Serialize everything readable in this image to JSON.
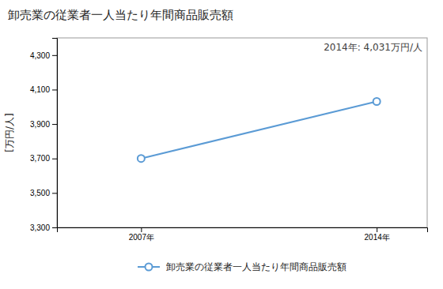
{
  "chart_data": {
    "type": "line",
    "title": "卸売業の従業者一人当たり年間商品販売額",
    "ylabel": "[万円/人]",
    "annotation": "2014年: 4,031万円/人",
    "x": [
      2007,
      2014
    ],
    "xlim": [
      2004.5,
      2015.5
    ],
    "xticks": [
      {
        "value": 2007,
        "label": "2007年"
      },
      {
        "value": 2014,
        "label": "2014年"
      }
    ],
    "series": [
      {
        "name": "卸売業の従業者一人当たり年間商品販売額",
        "color": "#5b9bd5",
        "marker": "circle",
        "values": [
          3700,
          4031
        ]
      }
    ],
    "ylim": [
      3300,
      4400
    ],
    "yticks": [
      {
        "value": 3300,
        "label": "3,300"
      },
      {
        "value": 3500,
        "label": "3,500"
      },
      {
        "value": 3700,
        "label": "3,700"
      },
      {
        "value": 3900,
        "label": "3,900"
      },
      {
        "value": 4100,
        "label": "4,100"
      },
      {
        "value": 4300,
        "label": "4,300"
      }
    ],
    "grid": false,
    "legend": "bottom"
  }
}
